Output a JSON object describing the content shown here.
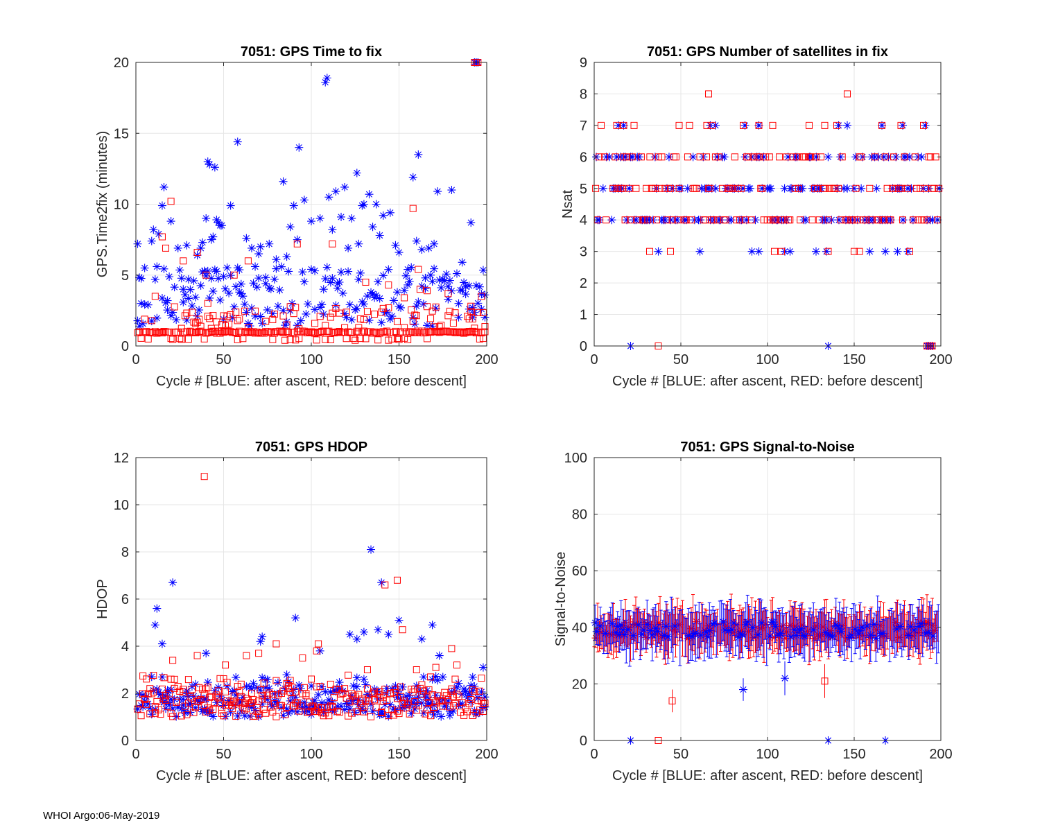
{
  "footer": "WHOI Argo:06-May-2019",
  "colors": {
    "after_ascent": "#0000ff",
    "before_descent": "#ff0000",
    "grid": "#e6e6e6",
    "axis": "#262626"
  },
  "chart_data": [
    {
      "id": "time2fix",
      "type": "scatter",
      "title": "7051: GPS Time to fix",
      "xlabel": "Cycle #  [BLUE: after ascent, RED: before descent]",
      "ylabel": "GPS.Time2fix (minutes)",
      "xlim": [
        0,
        200
      ],
      "ylim": [
        0,
        20
      ],
      "xticks": [
        0,
        50,
        100,
        150,
        200
      ],
      "yticks": [
        0,
        5,
        10,
        15,
        20
      ],
      "series": [
        {
          "name": "after ascent",
          "marker": "star",
          "color": "#0000ff",
          "generator": "time2fix_blue",
          "points": [
            [
              1,
              7.2
            ],
            [
              2,
              1.4
            ],
            [
              3,
              3.0
            ],
            [
              5,
              5.5
            ],
            [
              7,
              2.9
            ],
            [
              9,
              7.4
            ],
            [
              10,
              8.2
            ],
            [
              12,
              5.6
            ],
            [
              13,
              7.9
            ],
            [
              15,
              9.9
            ],
            [
              16,
              11.2
            ],
            [
              18,
              3.2
            ],
            [
              20,
              8.8
            ],
            [
              24,
              6.9
            ],
            [
              27,
              4.0
            ],
            [
              29,
              7.1
            ],
            [
              30,
              4.7
            ],
            [
              33,
              4.6
            ],
            [
              35,
              6.4
            ],
            [
              37,
              6.9
            ],
            [
              38,
              7.3
            ],
            [
              40,
              9.0
            ],
            [
              41,
              13.0
            ],
            [
              42,
              12.8
            ],
            [
              43,
              7.5
            ],
            [
              44,
              7.7
            ],
            [
              45,
              12.6
            ],
            [
              46,
              8.9
            ],
            [
              47,
              8.7
            ],
            [
              48,
              8.5
            ],
            [
              49,
              8.5
            ],
            [
              50,
              4.9
            ],
            [
              54,
              9.9
            ],
            [
              58,
              14.4
            ],
            [
              59,
              3.8
            ],
            [
              60,
              3.7
            ],
            [
              63,
              7.6
            ],
            [
              66,
              6.9
            ],
            [
              68,
              5.6
            ],
            [
              70,
              6.5
            ],
            [
              71,
              7.0
            ],
            [
              74,
              4.4
            ],
            [
              76,
              7.2
            ],
            [
              80,
              6.1
            ],
            [
              84,
              11.6
            ],
            [
              86,
              6.3
            ],
            [
              88,
              8.4
            ],
            [
              90,
              9.9
            ],
            [
              92,
              7.5
            ],
            [
              93,
              14.0
            ],
            [
              96,
              10.3
            ],
            [
              100,
              8.8
            ],
            [
              102,
              5.3
            ],
            [
              105,
              9.0
            ],
            [
              107,
              4.0
            ],
            [
              108,
              18.6
            ],
            [
              109,
              18.9
            ],
            [
              110,
              10.5
            ],
            [
              112,
              8.2
            ],
            [
              114,
              10.9
            ],
            [
              115,
              4.4
            ],
            [
              117,
              9.1
            ],
            [
              119,
              11.2
            ],
            [
              121,
              6.9
            ],
            [
              123,
              9.0
            ],
            [
              126,
              12.2
            ],
            [
              127,
              7.2
            ],
            [
              129,
              9.9
            ],
            [
              130,
              10.0
            ],
            [
              133,
              10.7
            ],
            [
              135,
              8.4
            ],
            [
              137,
              10.0
            ],
            [
              139,
              7.8
            ],
            [
              141,
              9.2
            ],
            [
              145,
              9.4
            ],
            [
              148,
              7.1
            ],
            [
              150,
              6.6
            ],
            [
              155,
              5.4
            ],
            [
              158,
              11.9
            ],
            [
              160,
              7.4
            ],
            [
              161,
              13.5
            ],
            [
              163,
              6.8
            ],
            [
              165,
              4.8
            ],
            [
              167,
              6.9
            ],
            [
              169,
              1.4
            ],
            [
              170,
              7.2
            ],
            [
              172,
              10.9
            ],
            [
              176,
              4.6
            ],
            [
              178,
              4.2
            ],
            [
              180,
              11.0
            ],
            [
              184,
              3.0
            ],
            [
              186,
              5.9
            ],
            [
              188,
              4.2
            ],
            [
              190,
              2.6
            ],
            [
              191,
              8.7
            ],
            [
              192,
              2.7
            ],
            [
              193,
              20.0
            ],
            [
              194,
              20.0
            ],
            [
              195,
              20.0
            ],
            [
              197,
              2.6
            ],
            [
              199,
              3.6
            ]
          ]
        },
        {
          "name": "before descent",
          "marker": "square",
          "color": "#ff0000",
          "generator": "time2fix_red",
          "points": [
            [
              11,
              3.5
            ],
            [
              15,
              7.7
            ],
            [
              17,
              6.9
            ],
            [
              20,
              10.2
            ],
            [
              27,
              6.0
            ],
            [
              35,
              6.6
            ],
            [
              40,
              5.0
            ],
            [
              41,
              3.0
            ],
            [
              56,
              5.0
            ],
            [
              64,
              6.0
            ],
            [
              92,
              7.2
            ],
            [
              112,
              7.2
            ],
            [
              131,
              4.5
            ],
            [
              144,
              4.3
            ],
            [
              153,
              3.4
            ],
            [
              158,
              9.7
            ],
            [
              161,
              5.4
            ],
            [
              162,
              4.0
            ],
            [
              166,
              3.9
            ],
            [
              178,
              3.7
            ],
            [
              191,
              2.8
            ],
            [
              193,
              20.0
            ],
            [
              194,
              20.0
            ],
            [
              195,
              20.0
            ],
            [
              197,
              3.5
            ]
          ]
        }
      ]
    },
    {
      "id": "nsat",
      "type": "scatter",
      "title": "7051: GPS Number of satellites in fix",
      "xlabel": "Cycle #  [BLUE: after ascent, RED: before descent]",
      "ylabel": "Nsat",
      "xlim": [
        0,
        200
      ],
      "ylim": [
        0,
        9
      ],
      "xticks": [
        0,
        50,
        100,
        150,
        200
      ],
      "yticks": [
        0,
        1,
        2,
        3,
        4,
        5,
        6,
        7,
        8,
        9
      ],
      "series": [
        {
          "name": "after ascent",
          "marker": "star",
          "color": "#0000ff",
          "generator": "nsat_blue",
          "points": [
            [
              21,
              0
            ],
            [
              135,
              0
            ],
            [
              192,
              0
            ],
            [
              193,
              0
            ],
            [
              194,
              0
            ],
            [
              195,
              0
            ],
            [
              37,
              3
            ],
            [
              61,
              3
            ],
            [
              91,
              3
            ],
            [
              95,
              3
            ],
            [
              110,
              3
            ],
            [
              113,
              3
            ],
            [
              128,
              3
            ],
            [
              134,
              3
            ],
            [
              159,
              3
            ],
            [
              168,
              3
            ],
            [
              175,
              3
            ],
            [
              181,
              3
            ],
            [
              14,
              7
            ],
            [
              17,
              7
            ],
            [
              67,
              7
            ],
            [
              70,
              7
            ],
            [
              87,
              7
            ],
            [
              95,
              7
            ],
            [
              141,
              7
            ],
            [
              146,
              7
            ],
            [
              166,
              7
            ],
            [
              178,
              7
            ],
            [
              191,
              7
            ]
          ]
        },
        {
          "name": "before descent",
          "marker": "square",
          "color": "#ff0000",
          "generator": "nsat_red",
          "points": [
            [
              37,
              0
            ],
            [
              192,
              0
            ],
            [
              193,
              0
            ],
            [
              194,
              0
            ],
            [
              195,
              0
            ],
            [
              32,
              3
            ],
            [
              44,
              3
            ],
            [
              104,
              3
            ],
            [
              108,
              3
            ],
            [
              135,
              3
            ],
            [
              150,
              3
            ],
            [
              153,
              3
            ],
            [
              182,
              3
            ],
            [
              4,
              7
            ],
            [
              13,
              7
            ],
            [
              17,
              7
            ],
            [
              23,
              7
            ],
            [
              49,
              7
            ],
            [
              55,
              7
            ],
            [
              65,
              7
            ],
            [
              68,
              7
            ],
            [
              86,
              7
            ],
            [
              95,
              7
            ],
            [
              103,
              7
            ],
            [
              124,
              7
            ],
            [
              133,
              7
            ],
            [
              140,
              7
            ],
            [
              166,
              7
            ],
            [
              177,
              7
            ],
            [
              190,
              7
            ],
            [
              66,
              8
            ],
            [
              146,
              8
            ]
          ]
        }
      ]
    },
    {
      "id": "hdop",
      "type": "scatter",
      "title": "7051: GPS HDOP",
      "xlabel": "Cycle #  [BLUE: after ascent, RED: before descent]",
      "ylabel": "HDOP",
      "xlim": [
        0,
        200
      ],
      "ylim": [
        0,
        12
      ],
      "xticks": [
        0,
        50,
        100,
        150,
        200
      ],
      "yticks": [
        0,
        2,
        4,
        6,
        8,
        10,
        12
      ],
      "series": [
        {
          "name": "after ascent",
          "marker": "star",
          "color": "#0000ff",
          "generator": "hdop_blue",
          "points": [
            [
              9,
              2.7
            ],
            [
              11,
              4.9
            ],
            [
              12,
              5.6
            ],
            [
              15,
              4.1
            ],
            [
              21,
              6.7
            ],
            [
              40,
              3.7
            ],
            [
              71,
              4.2
            ],
            [
              72,
              4.4
            ],
            [
              91,
              5.2
            ],
            [
              105,
              3.8
            ],
            [
              122,
              4.5
            ],
            [
              126,
              4.3
            ],
            [
              130,
              4.6
            ],
            [
              134,
              8.1
            ],
            [
              138,
              4.7
            ],
            [
              140,
              6.7
            ],
            [
              144,
              4.5
            ],
            [
              150,
              5.1
            ],
            [
              163,
              4.3
            ],
            [
              169,
              4.9
            ],
            [
              173,
              3.6
            ],
            [
              198,
              3.1
            ]
          ]
        },
        {
          "name": "before descent",
          "marker": "square",
          "color": "#ff0000",
          "generator": "hdop_red",
          "points": [
            [
              8,
              2.2
            ],
            [
              20,
              2.6
            ],
            [
              21,
              3.4
            ],
            [
              35,
              3.6
            ],
            [
              39,
              11.2
            ],
            [
              51,
              3.2
            ],
            [
              63,
              3.6
            ],
            [
              70,
              3.7
            ],
            [
              80,
              4.1
            ],
            [
              95,
              3.5
            ],
            [
              103,
              3.8
            ],
            [
              104,
              4.1
            ],
            [
              132,
              3.0
            ],
            [
              142,
              6.6
            ],
            [
              149,
              6.8
            ],
            [
              152,
              4.7
            ],
            [
              160,
              3.0
            ],
            [
              171,
              3.1
            ],
            [
              180,
              3.9
            ],
            [
              183,
              3.2
            ]
          ]
        }
      ]
    },
    {
      "id": "snr",
      "type": "errorbar",
      "title": "7051: GPS Signal-to-Noise",
      "xlabel": "Cycle #  [BLUE: after ascent, RED: before descent]",
      "ylabel": "Signal-to-Noise",
      "xlim": [
        0,
        200
      ],
      "ylim": [
        0,
        100
      ],
      "xticks": [
        0,
        50,
        100,
        150,
        200
      ],
      "yticks": [
        0,
        20,
        40,
        60,
        80,
        100
      ],
      "series": [
        {
          "name": "after ascent",
          "marker": "star",
          "color": "#0000ff",
          "generator": "snr_blue",
          "points": [
            [
              21,
              0
            ],
            [
              135,
              0
            ],
            [
              168,
              0
            ],
            [
              86,
              18
            ],
            [
              110,
              22
            ]
          ]
        },
        {
          "name": "before descent",
          "marker": "square",
          "color": "#ff0000",
          "generator": "snr_red",
          "points": [
            [
              37,
              0
            ],
            [
              45,
              14
            ],
            [
              133,
              21
            ]
          ]
        }
      ]
    }
  ]
}
